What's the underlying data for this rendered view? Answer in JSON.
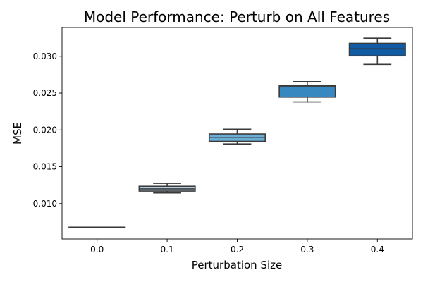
{
  "chart_data": {
    "type": "box",
    "title": "Model Performance: Perturb on All Features",
    "xlabel": "Perturbation Size",
    "ylabel": "MSE",
    "categories": [
      "0.0",
      "0.1",
      "0.2",
      "0.3",
      "0.4"
    ],
    "ylim": [
      0.0052,
      0.0339
    ],
    "yticks": [
      0.01,
      0.015,
      0.02,
      0.025,
      0.03
    ],
    "ytick_labels": [
      "0.010",
      "0.015",
      "0.020",
      "0.025",
      "0.030"
    ],
    "grid": false,
    "legend": "none",
    "boxes": [
      {
        "category": "0.0",
        "whisker_low": 0.0068,
        "q1": 0.0068,
        "median": 0.0068,
        "q3": 0.0068,
        "whisker_high": 0.0068,
        "color": "#dbe9f6"
      },
      {
        "category": "0.1",
        "whisker_low": 0.01145,
        "q1": 0.0117,
        "median": 0.012,
        "q3": 0.01235,
        "whisker_high": 0.01275,
        "color": "#bad6eb"
      },
      {
        "category": "0.2",
        "whisker_low": 0.0181,
        "q1": 0.01845,
        "median": 0.019,
        "q3": 0.01945,
        "whisker_high": 0.0201,
        "color": "#6aaed6"
      },
      {
        "category": "0.3",
        "whisker_low": 0.0238,
        "q1": 0.02445,
        "median": 0.02595,
        "q3": 0.026,
        "whisker_high": 0.02655,
        "color": "#3787c0"
      },
      {
        "category": "0.4",
        "whisker_low": 0.0289,
        "q1": 0.03005,
        "median": 0.031,
        "q3": 0.03175,
        "whisker_high": 0.03245,
        "color": "#105ba4"
      }
    ]
  }
}
